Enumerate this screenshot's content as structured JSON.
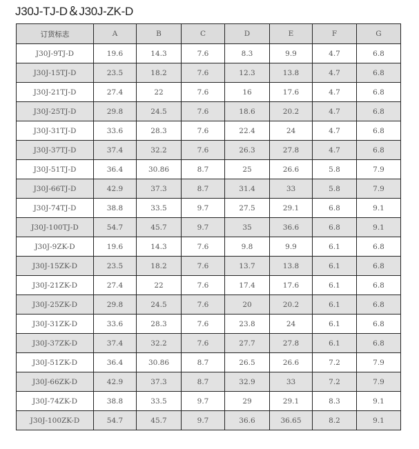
{
  "title": "J30J-TJ-D＆J30J-ZK-D",
  "table": {
    "headers": [
      "订货标志",
      "A",
      "B",
      "C",
      "D",
      "E",
      "F",
      "G"
    ],
    "rows": [
      [
        "J30J-9TJ-D",
        "19.6",
        "14.3",
        "7.6",
        "8.3",
        "9.9",
        "4.7",
        "6.8"
      ],
      [
        "J30J-15TJ-D",
        "23.5",
        "18.2",
        "7.6",
        "12.3",
        "13.8",
        "4.7",
        "6.8"
      ],
      [
        "J30J-21TJ-D",
        "27.4",
        "22",
        "7.6",
        "16",
        "17.6",
        "4.7",
        "6.8"
      ],
      [
        "J30J-25TJ-D",
        "29.8",
        "24.5",
        "7.6",
        "18.6",
        "20.2",
        "4.7",
        "6.8"
      ],
      [
        "J30J-31TJ-D",
        "33.6",
        "28.3",
        "7.6",
        "22.4",
        "24",
        "4.7",
        "6.8"
      ],
      [
        "J30J-37TJ-D",
        "37.4",
        "32.2",
        "7.6",
        "26.3",
        "27.8",
        "4.7",
        "6.8"
      ],
      [
        "J30J-51TJ-D",
        "36.4",
        "30.86",
        "8.7",
        "25",
        "26.6",
        "5.8",
        "7.9"
      ],
      [
        "J30J-66TJ-D",
        "42.9",
        "37.3",
        "8.7",
        "31.4",
        "33",
        "5.8",
        "7.9"
      ],
      [
        "J30J-74TJ-D",
        "38.8",
        "33.5",
        "9.7",
        "27.5",
        "29.1",
        "6.8",
        "9.1"
      ],
      [
        "J30J-100TJ-D",
        "54.7",
        "45.7",
        "9.7",
        "35",
        "36.6",
        "6.8",
        "9.1"
      ],
      [
        "J30J-9ZK-D",
        "19.6",
        "14.3",
        "7.6",
        "9.8",
        "9.9",
        "6.1",
        "6.8"
      ],
      [
        "J30J-15ZK-D",
        "23.5",
        "18.2",
        "7.6",
        "13.7",
        "13.8",
        "6.1",
        "6.8"
      ],
      [
        "J30J-21ZK-D",
        "27.4",
        "22",
        "7.6",
        "17.4",
        "17.6",
        "6.1",
        "6.8"
      ],
      [
        "J30J-25ZK-D",
        "29.8",
        "24.5",
        "7.6",
        "20",
        "20.2",
        "6.1",
        "6.8"
      ],
      [
        "J30J-31ZK-D",
        "33.6",
        "28.3",
        "7.6",
        "23.8",
        "24",
        "6.1",
        "6.8"
      ],
      [
        "J30J-37ZK-D",
        "37.4",
        "32.2",
        "7.6",
        "27.7",
        "27.8",
        "6.1",
        "6.8"
      ],
      [
        "J30J-51ZK-D",
        "36.4",
        "30.86",
        "8.7",
        "26.5",
        "26.6",
        "7.2",
        "7.9"
      ],
      [
        "J30J-66ZK-D",
        "42.9",
        "37.3",
        "8.7",
        "32.9",
        "33",
        "7.2",
        "7.9"
      ],
      [
        "J30J-74ZK-D",
        "38.8",
        "33.5",
        "9.7",
        "29",
        "29.1",
        "8.3",
        "9.1"
      ],
      [
        "J30J-100ZK-D",
        "54.7",
        "45.7",
        "9.7",
        "36.6",
        "36.65",
        "8.2",
        "9.1"
      ]
    ]
  }
}
